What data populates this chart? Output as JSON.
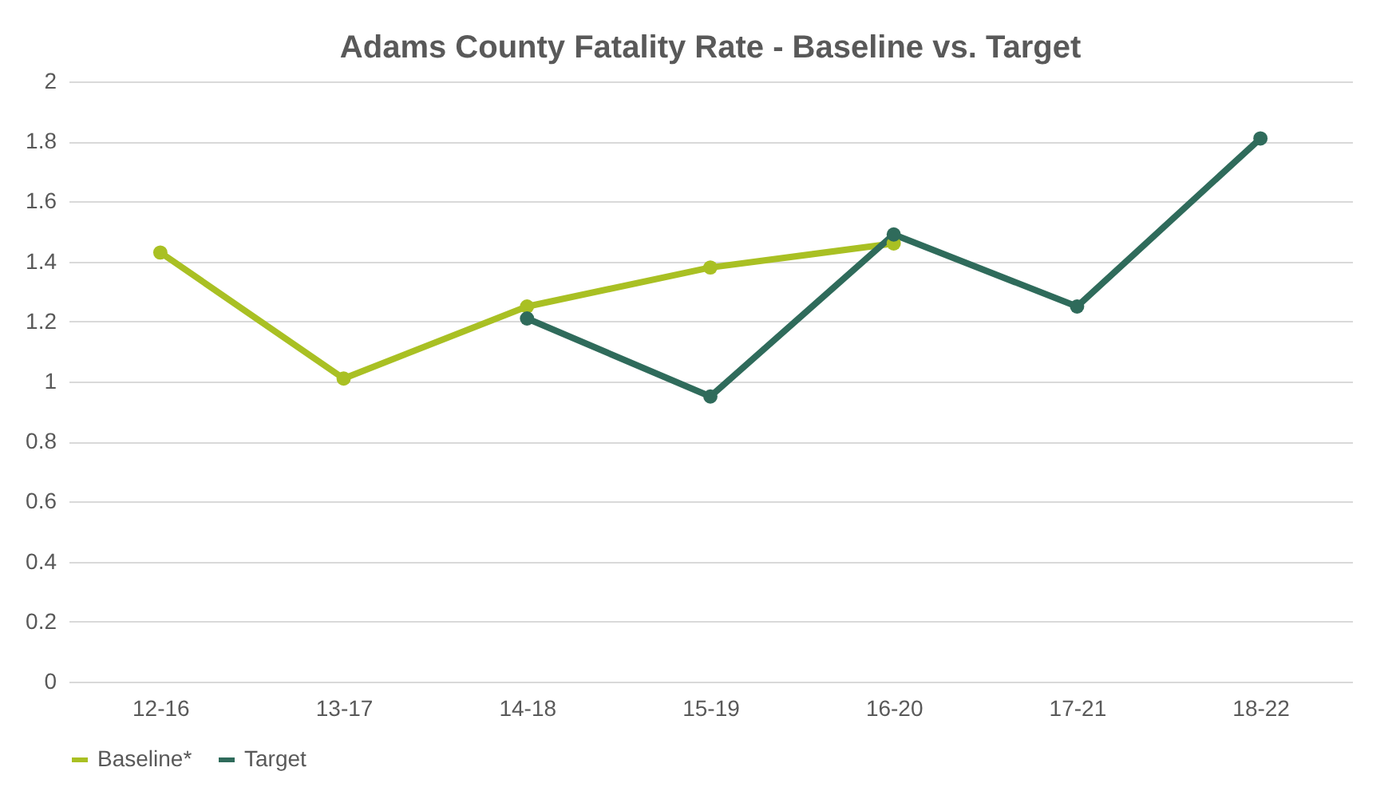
{
  "chart_data": {
    "type": "line",
    "title": "Adams County Fatality Rate - Baseline vs. Target",
    "categories": [
      "12-16",
      "13-17",
      "14-18",
      "15-19",
      "16-20",
      "17-21",
      "18-22"
    ],
    "series": [
      {
        "name": "Baseline*",
        "color": "#a9c023",
        "values": [
          1.43,
          1.01,
          1.25,
          1.38,
          1.46,
          null,
          null
        ]
      },
      {
        "name": "Target",
        "color": "#2f6b5b",
        "values": [
          null,
          null,
          1.21,
          0.95,
          1.49,
          1.25,
          1.81
        ]
      }
    ],
    "ylim": [
      0,
      2
    ],
    "yticks": [
      0,
      0.2,
      0.4,
      0.6,
      0.8,
      1,
      1.2,
      1.4,
      1.6,
      1.8,
      2
    ],
    "grid": "y",
    "legend": "bottom",
    "marker": "circle",
    "line_style": "solid"
  }
}
